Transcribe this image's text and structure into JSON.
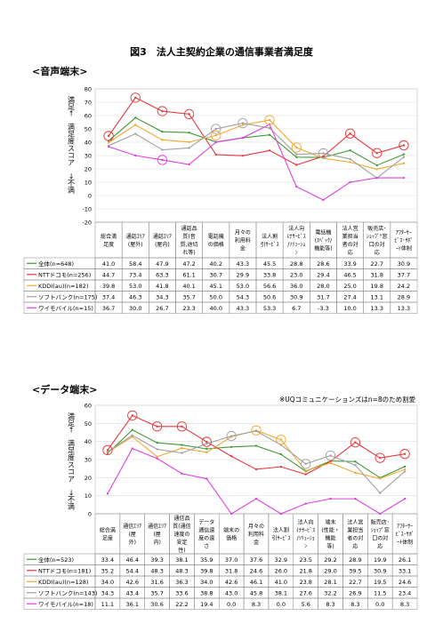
{
  "page_title": "図3　法人主契約企業の通信事業者満足度",
  "note": "※UQコミュニケーションズはn=8のため割愛",
  "colors": {
    "all": "#3e9a38",
    "ntt": "#e8383d",
    "kddi": "#f0a830",
    "softbank": "#a0a0a0",
    "ymobile": "#e040e0"
  },
  "chart_data": [
    {
      "type": "line",
      "title": "<音声端末>",
      "ylabel": "満足←　満足度スコア　→不満",
      "ylim": [
        -20,
        80
      ],
      "yticks": [
        -20,
        -10,
        0,
        10,
        20,
        30,
        40,
        50,
        60,
        70,
        80
      ],
      "categories": [
        "総合満\n足度",
        "通話ｴﾘｱ\n(屋外)",
        "通話ｴﾘｱ\n(屋内)",
        "通話品\n質(音\n質,途切\nれ等)",
        "電話機\nの価格",
        "月々の\n利用料\n金",
        "法人割\n引ｻｰﾋﾞｽ",
        "法人向\nけｻｰﾋﾞｽ\n/ｿﾘｭｰｼｮ\nﾝ",
        "電話機\n(ｽﾍﾟｯｸ/\n機能等)",
        "法人営\n業担当\n者の対\n応",
        "販売店･\nｼｮｯﾌﾟ\"窓\n口の対\n応",
        "ｱﾌﾀｰｻｰ\nﾋﾞｽ･ｻﾎﾟ\nｰﾄ体制"
      ],
      "series": [
        {
          "name": "全体(n=648)",
          "key": "all",
          "values": [
            41.0,
            58.4,
            47.9,
            47.2,
            40.2,
            43.3,
            45.5,
            28.8,
            28.6,
            33.9,
            22.7,
            30.9
          ]
        },
        {
          "name": "NTTドコモ(n=256)",
          "key": "ntt",
          "values": [
            44.7,
            73.4,
            63.3,
            61.1,
            30.7,
            29.9,
            33.8,
            23.0,
            29.4,
            46.5,
            31.8,
            37.7
          ]
        },
        {
          "name": "KDDI(au)(n=182)",
          "key": "kddi",
          "values": [
            39.8,
            53.0,
            41.8,
            40.1,
            45.1,
            53.0,
            56.6,
            36.0,
            28.0,
            25.0,
            19.8,
            24.2
          ]
        },
        {
          "name": "ソフトバンク(n=175)",
          "key": "softbank",
          "values": [
            37.4,
            46.3,
            34.3,
            35.7,
            50.0,
            54.3,
            50.6,
            30.9,
            31.7,
            27.4,
            13.1,
            28.9
          ]
        },
        {
          "name": "ワイモバイル(n=15)",
          "key": "ymobile",
          "values": [
            36.7,
            30.0,
            26.7,
            23.3,
            40.0,
            43.3,
            53.3,
            6.7,
            -3.3,
            10.0,
            13.3,
            13.3
          ]
        }
      ],
      "highlights": [
        [
          1,
          1
        ],
        [
          1,
          2
        ],
        [
          1,
          3
        ],
        [
          1,
          9
        ],
        [
          1,
          10
        ],
        [
          1,
          11
        ],
        [
          1,
          0
        ],
        [
          2,
          4
        ],
        [
          2,
          6
        ],
        [
          2,
          7
        ],
        [
          3,
          4
        ],
        [
          3,
          5
        ],
        [
          3,
          8
        ],
        [
          4,
          2
        ]
      ]
    },
    {
      "type": "line",
      "title": "<データ端末>",
      "ylabel": "満足←　満足度スコア　→不満",
      "ylim": [
        0,
        60
      ],
      "yticks": [
        0,
        10,
        20,
        30,
        40,
        50,
        60
      ],
      "categories": [
        "総合満\n足度",
        "通信ｴﾘｱ\n(屋\n外)",
        "通信ｴﾘｱ\n(屋\n内)",
        "通信品\n質(通信\n速度の\n安定\n性)",
        "データ\n通信速\n度の速\nさ",
        "端末の\n価格",
        "月々の\n利用料\n金",
        "法人割\n引ｻｰﾋﾞｽ",
        "法人向\nけｻｰﾋﾞｽ\n/ｿﾘｭｰｼｮ\nﾝ",
        "端末\n(性能・\n機能\n等)",
        "法人営\n業担当\n者の対\n応",
        "販売店･\nｼｮｯﾌﾟ窓\n口の対\n応",
        "ｱﾌﾀｰｻｰ\nﾋﾞｽ･ｻﾎﾟ\nｰﾄ体制"
      ],
      "series": [
        {
          "name": "全体(n=523)",
          "key": "all",
          "values": [
            33.4,
            46.4,
            39.3,
            38.1,
            35.9,
            37.0,
            37.6,
            32.9,
            23.5,
            29.2,
            28.9,
            19.9,
            26.1
          ]
        },
        {
          "name": "NTTドコモ(n=181)",
          "key": "ntt",
          "values": [
            35.2,
            54.4,
            48.3,
            48.3,
            39.8,
            31.8,
            24.6,
            26.0,
            21.8,
            29.0,
            39.5,
            30.9,
            33.1
          ]
        },
        {
          "name": "KDDI(au)(n=128)",
          "key": "kddi",
          "values": [
            34.0,
            42.6,
            31.6,
            36.3,
            34.0,
            42.6,
            46.1,
            41.0,
            23.8,
            28.1,
            22.7,
            19.5,
            24.6
          ]
        },
        {
          "name": "ソフトバンク(n=143)",
          "key": "softbank",
          "values": [
            34.3,
            43.4,
            35.7,
            33.6,
            38.8,
            43.0,
            45.8,
            38.1,
            27.6,
            32.2,
            26.9,
            11.5,
            23.4
          ]
        },
        {
          "name": "ワイモバイル(n=18)",
          "key": "ymobile",
          "values": [
            11.1,
            36.1,
            30.6,
            22.2,
            19.4,
            0.0,
            8.3,
            0.0,
            5.6,
            8.3,
            8.3,
            0.0,
            8.3
          ]
        }
      ],
      "highlights": [
        [
          1,
          0
        ],
        [
          1,
          1
        ],
        [
          1,
          2
        ],
        [
          1,
          3
        ],
        [
          1,
          10
        ],
        [
          1,
          11
        ],
        [
          1,
          12
        ],
        [
          1,
          4
        ],
        [
          2,
          6
        ],
        [
          2,
          7
        ],
        [
          3,
          5
        ],
        [
          3,
          8
        ],
        [
          3,
          9
        ]
      ]
    }
  ]
}
